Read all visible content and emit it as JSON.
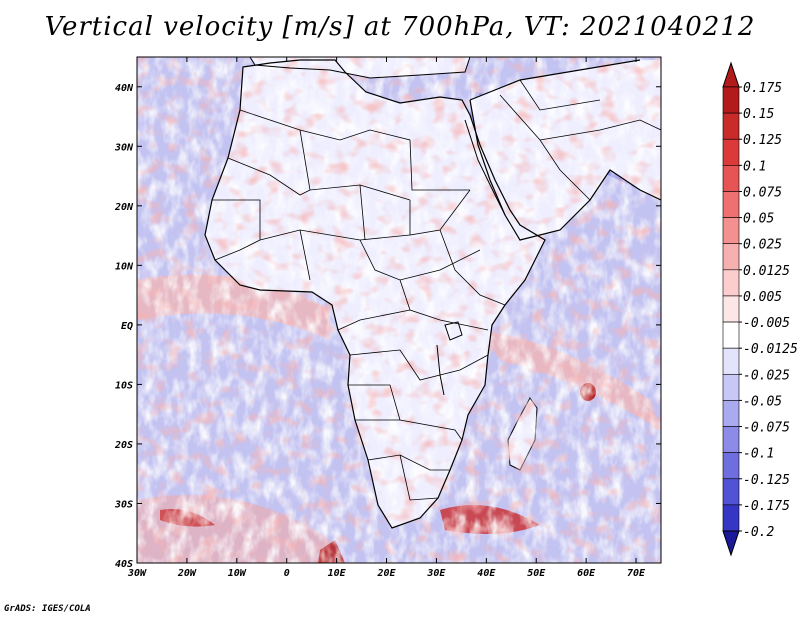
{
  "title": "Vertical velocity [m/s] at 700hPa, VT: 2021040212",
  "credit": "GrADS: IGES/COLA",
  "map": {
    "lon_range": [
      -30,
      75
    ],
    "lat_range": [
      -40,
      45
    ],
    "lat_ticks": [
      {
        "value": 40,
        "label": "40N"
      },
      {
        "value": 30,
        "label": "30N"
      },
      {
        "value": 20,
        "label": "20N"
      },
      {
        "value": 10,
        "label": "10N"
      },
      {
        "value": 0,
        "label": "EQ"
      },
      {
        "value": -10,
        "label": "10S"
      },
      {
        "value": -20,
        "label": "20S"
      },
      {
        "value": -30,
        "label": "30S"
      },
      {
        "value": -40,
        "label": "40S"
      }
    ],
    "lon_ticks": [
      {
        "value": -30,
        "label": "30W"
      },
      {
        "value": -20,
        "label": "20W"
      },
      {
        "value": -10,
        "label": "10W"
      },
      {
        "value": 0,
        "label": "0"
      },
      {
        "value": 10,
        "label": "10E"
      },
      {
        "value": 20,
        "label": "20E"
      },
      {
        "value": 30,
        "label": "30E"
      },
      {
        "value": 40,
        "label": "40E"
      },
      {
        "value": 50,
        "label": "50E"
      },
      {
        "value": 60,
        "label": "60E"
      },
      {
        "value": 70,
        "label": "70E"
      }
    ]
  },
  "colorbar": {
    "levels": [
      {
        "label": "0.175",
        "color": "#b31b1b"
      },
      {
        "label": "0.15",
        "color": "#c92a2a"
      },
      {
        "label": "0.125",
        "color": "#dc3a3a"
      },
      {
        "label": "0.1",
        "color": "#e65454"
      },
      {
        "label": "0.075",
        "color": "#ee7070"
      },
      {
        "label": "0.05",
        "color": "#f39090"
      },
      {
        "label": "0.025",
        "color": "#f7b0b0"
      },
      {
        "label": "0.0125",
        "color": "#fbcdcd"
      },
      {
        "label": "0.005",
        "color": "#fde6e6"
      },
      {
        "label": "-0.005",
        "color": "#ffffff"
      },
      {
        "label": "-0.0125",
        "color": "#e3e3fb"
      },
      {
        "label": "-0.025",
        "color": "#c8c8f6"
      },
      {
        "label": "-0.05",
        "color": "#aaaaf0"
      },
      {
        "label": "-0.075",
        "color": "#8c8ce8"
      },
      {
        "label": "-0.1",
        "color": "#6e6edf"
      },
      {
        "label": "-0.125",
        "color": "#5252d4"
      },
      {
        "label": "-0.175",
        "color": "#3636c4"
      },
      {
        "label": "-0.2",
        "color": "#2424aa"
      }
    ],
    "top_color": "#b31b1b",
    "bottom_color": "#1a1a9a"
  },
  "colors": {
    "ocean_base": "#c3c3f2",
    "land_base": "#eeeeff",
    "border": "#000000"
  }
}
